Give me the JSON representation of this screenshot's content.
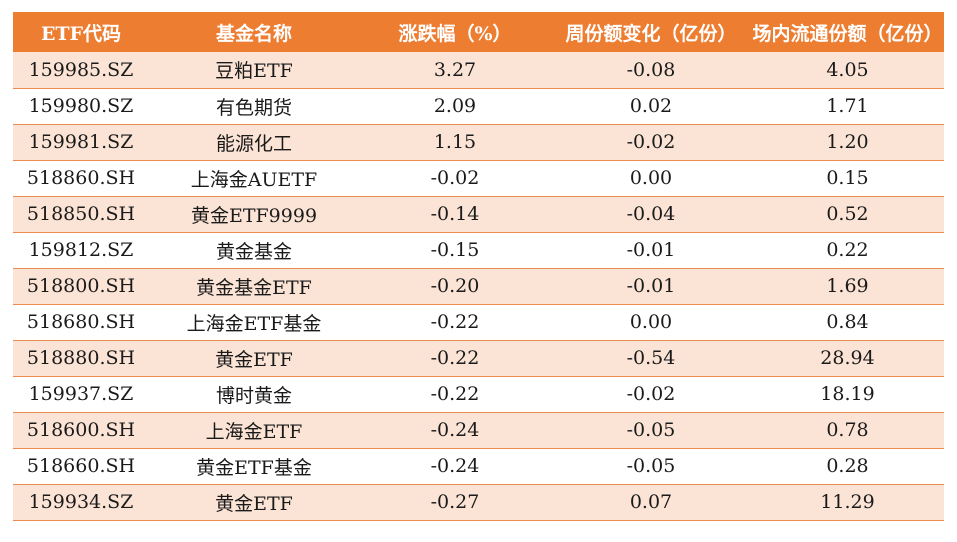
{
  "table": {
    "headers": [
      "ETF代码",
      "基金名称",
      "涨跌幅（%）",
      "周份额变化（亿份）",
      "场内流通份额（亿份）"
    ],
    "rows": [
      [
        "159985.SZ",
        "豆粕ETF",
        "3.27",
        "-0.08",
        "4.05"
      ],
      [
        "159980.SZ",
        "有色期货",
        "2.09",
        "0.02",
        "1.71"
      ],
      [
        "159981.SZ",
        "能源化工",
        "1.15",
        "-0.02",
        "1.20"
      ],
      [
        "518860.SH",
        "上海金AUETF",
        "-0.02",
        "0.00",
        "0.15"
      ],
      [
        "518850.SH",
        "黄金ETF9999",
        "-0.14",
        "-0.04",
        "0.52"
      ],
      [
        "159812.SZ",
        "黄金基金",
        "-0.15",
        "-0.01",
        "0.22"
      ],
      [
        "518800.SH",
        "黄金基金ETF",
        "-0.20",
        "-0.01",
        "1.69"
      ],
      [
        "518680.SH",
        "上海金ETF基金",
        "-0.22",
        "0.00",
        "0.84"
      ],
      [
        "518880.SH",
        "黄金ETF",
        "-0.22",
        "-0.54",
        "28.94"
      ],
      [
        "159937.SZ",
        "博时黄金",
        "-0.22",
        "-0.02",
        "18.19"
      ],
      [
        "518600.SH",
        "上海金ETF",
        "-0.24",
        "-0.05",
        "0.78"
      ],
      [
        "518660.SH",
        "黄金ETF基金",
        "-0.24",
        "-0.05",
        "0.28"
      ],
      [
        "159934.SZ",
        "黄金ETF",
        "-0.27",
        "0.07",
        "11.29"
      ]
    ]
  },
  "colors": {
    "header_bg": "#ed7d31",
    "header_text": "#ffffff",
    "row_band": "#fbe4d5",
    "row_plain": "#ffffff",
    "row_border": "#ed8a4f"
  }
}
